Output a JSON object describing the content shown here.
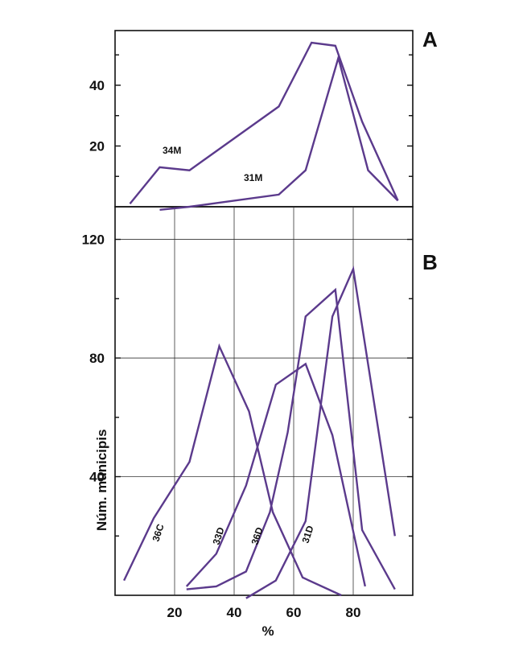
{
  "chart_data": [
    {
      "panel": "A",
      "type": "line",
      "xlim": [
        0,
        100
      ],
      "ylim": [
        0,
        58
      ],
      "y_ticks": [
        20,
        40
      ],
      "series": [
        {
          "name": "34M",
          "x": [
            5,
            15,
            25,
            55,
            66,
            74,
            83,
            95
          ],
          "y": [
            1,
            13,
            12,
            33,
            54,
            53,
            28,
            2
          ]
        },
        {
          "name": "31M",
          "x": [
            15,
            25,
            55,
            64,
            75,
            85,
            95
          ],
          "y": [
            -1,
            0,
            4,
            12,
            49,
            12,
            2
          ]
        }
      ]
    },
    {
      "panel": "B",
      "type": "line",
      "xlim": [
        0,
        100
      ],
      "ylim": [
        0,
        131
      ],
      "x_ticks": [
        20,
        40,
        60,
        80
      ],
      "y_ticks": [
        40,
        80,
        120
      ],
      "xlabel": "%",
      "ylabel": "Núm. municipis",
      "series": [
        {
          "name": "36C",
          "x": [
            3,
            13,
            25,
            35,
            45,
            53,
            63,
            76
          ],
          "y": [
            5,
            26,
            45,
            84,
            62,
            28,
            6,
            0
          ]
        },
        {
          "name": "33D",
          "x": [
            24,
            34,
            44,
            54,
            64,
            73,
            84
          ],
          "y": [
            3,
            14,
            37,
            71,
            78,
            54,
            3
          ]
        },
        {
          "name": "36D",
          "x": [
            24,
            34,
            44,
            52,
            58,
            64,
            74,
            83,
            94
          ],
          "y": [
            2,
            3,
            8,
            28,
            55,
            94,
            103,
            22,
            2
          ]
        },
        {
          "name": "31D",
          "x": [
            44,
            54,
            64,
            73,
            80,
            94
          ],
          "y": [
            -1,
            5,
            25,
            94,
            110,
            20
          ]
        }
      ]
    }
  ],
  "panel_letters": {
    "a": "A",
    "b": "B"
  },
  "series_labels": {
    "s34M": "34M",
    "s31M": "31M",
    "s36C": "36C",
    "s33D": "33D",
    "s36D": "36D",
    "s31D": "31D"
  },
  "axis_labels": {
    "x": "%",
    "y": "Núm. municipis"
  }
}
